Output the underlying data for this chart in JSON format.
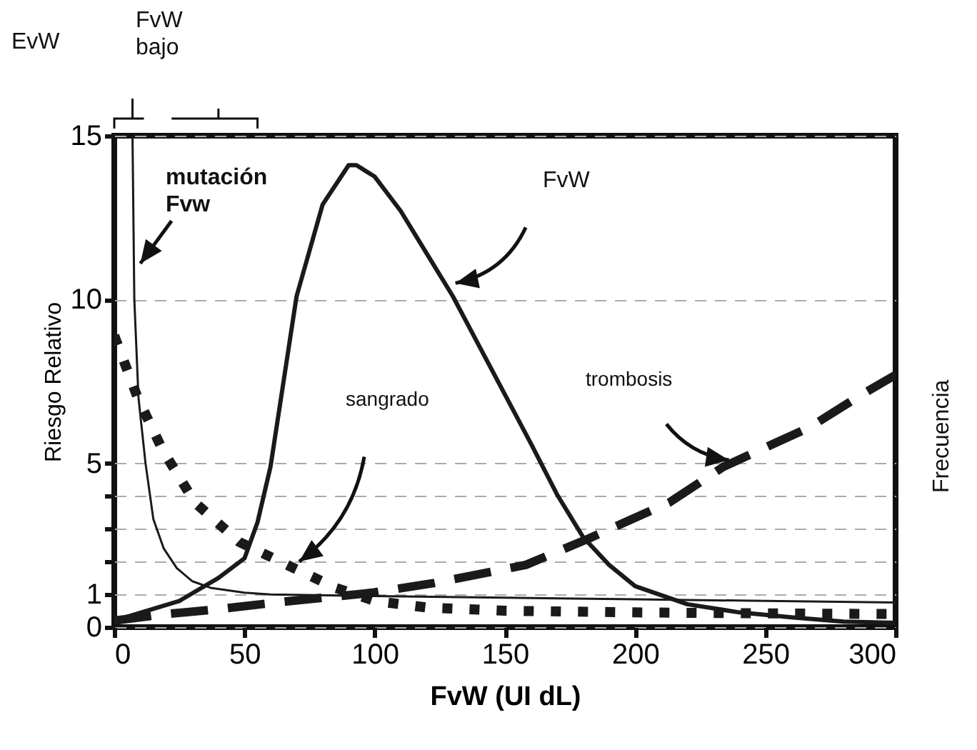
{
  "chart_data": {
    "type": "line",
    "xlabel": "FvW (UI dL)",
    "ylabel": "Riesgo Relativo",
    "y2label": "Frecuencia",
    "xlim": [
      0,
      300
    ],
    "xticks": [
      0,
      50,
      100,
      150,
      200,
      250,
      300
    ],
    "ylim": [
      0,
      15
    ],
    "yticks": [
      0,
      1,
      {
        "value": 2,
        "label": null
      },
      {
        "value": 3,
        "label": null
      },
      {
        "value": 4,
        "label": null
      },
      5,
      10,
      15
    ],
    "grid": "y",
    "marker": "none",
    "series": [
      {
        "color": "#1a1a1a",
        "line_style": "solid",
        "x": [
          0,
          25,
          40,
          50,
          55,
          60,
          65,
          70,
          80,
          90,
          93,
          100,
          110,
          120,
          130,
          140,
          150,
          160,
          170,
          180,
          190,
          200,
          220,
          240,
          260,
          280,
          300
        ],
        "values": [
          0.2,
          0.8,
          1.5,
          2.1,
          3.2,
          4.9,
          7.5,
          10.1,
          12.9,
          14.1,
          14.1,
          13.75,
          12.7,
          11.4,
          10.1,
          8.6,
          7.1,
          5.6,
          4.05,
          2.75,
          1.9,
          1.25,
          0.7,
          0.45,
          0.3,
          0.17,
          0.13
        ]
      },
      {
        "color": "#1a1a1a",
        "line_style": "solid",
        "x": [
          7,
          7.7,
          9.3,
          12,
          15,
          19,
          24,
          30,
          37,
          50,
          60,
          100,
          150,
          200,
          250,
          300
        ],
        "values": [
          15,
          10,
          7,
          5,
          3.3,
          2.4,
          1.8,
          1.4,
          1.2,
          1.05,
          1.0,
          0.95,
          0.9,
          0.85,
          0.8,
          0.75
        ]
      },
      {
        "color": "#1a1a1a",
        "line_style": "dotted",
        "x": [
          0,
          9,
          18.6,
          31,
          48,
          69,
          85,
          100,
          120,
          150,
          200,
          250,
          300
        ],
        "values": [
          8.9,
          7,
          5.4,
          3.8,
          2.6,
          1.8,
          1.2,
          0.8,
          0.6,
          0.5,
          0.45,
          0.42,
          0.4
        ]
      },
      {
        "color": "#1a1a1a",
        "line_style": "dashed",
        "x": [
          0,
          20,
          40,
          62,
          99,
          123,
          158,
          182,
          213,
          234,
          267,
          287,
          300
        ],
        "values": [
          0.2,
          0.4,
          0.55,
          0.75,
          1.05,
          1.35,
          1.9,
          2.7,
          3.8,
          4.9,
          6.1,
          7.1,
          7.7
        ]
      }
    ],
    "annotations": [
      "EvW",
      "FvW\nbajo",
      "mutación\nFvw",
      "FvW",
      "sangrado",
      "trombosis"
    ]
  }
}
